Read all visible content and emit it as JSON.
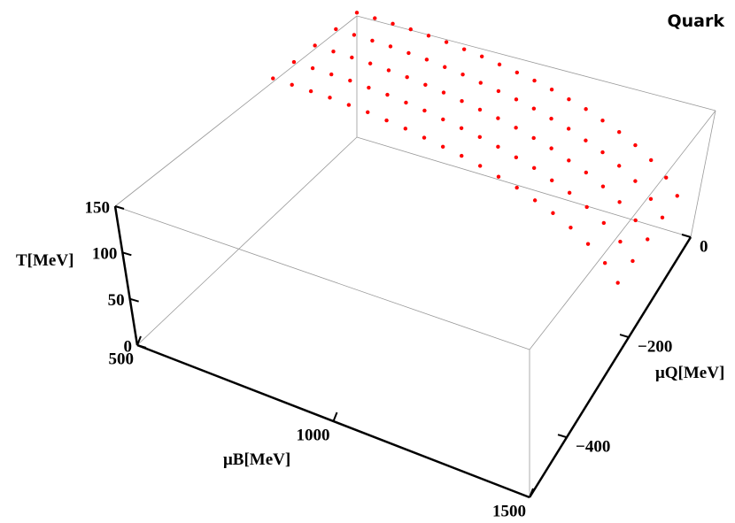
{
  "chart_data": {
    "type": "scatter3d",
    "title": "Quark",
    "xlabel": "μB[MeV]",
    "ylabel": "μQ[MeV]",
    "zlabel": "T[MeV]",
    "xlim": [
      500,
      1500
    ],
    "ylim": [
      -520,
      0
    ],
    "zlim": [
      0,
      150
    ],
    "xticks": [
      500,
      1000,
      1500
    ],
    "yticks": [
      0,
      {
        "value": -200,
        "label": "−200"
      },
      {
        "value": -400,
        "label": "−400"
      }
    ],
    "zticks": [
      0,
      50,
      100,
      150
    ],
    "color": "#ff0000",
    "x": [
      500,
      500,
      500,
      500,
      500,
      550,
      550,
      550,
      550,
      550,
      600,
      600,
      600,
      600,
      600,
      650,
      650,
      650,
      650,
      650,
      700,
      700,
      700,
      700,
      700,
      750,
      750,
      750,
      750,
      750,
      800,
      800,
      800,
      800,
      800,
      850,
      850,
      850,
      850,
      850,
      900,
      900,
      900,
      900,
      900,
      950,
      950,
      950,
      950,
      950,
      1000,
      1000,
      1000,
      1000,
      1000,
      1050,
      1050,
      1050,
      1050,
      1050,
      1100,
      1100,
      1100,
      1100,
      1100,
      1150,
      1150,
      1150,
      1150,
      1150,
      1200,
      1200,
      1200,
      1200,
      1200,
      1250,
      1250,
      1250,
      1250,
      1250,
      1300,
      1300,
      1300,
      1300,
      1300,
      1350,
      1350,
      1350,
      1350,
      1350,
      1400,
      1400,
      1400,
      1400,
      1400,
      1440,
      1440,
      1440,
      1440,
      1440
    ],
    "y": [
      0,
      -45,
      -90,
      -135,
      -180,
      0,
      -45,
      -90,
      -135,
      -180,
      0,
      -45,
      -90,
      -135,
      -180,
      0,
      -45,
      -90,
      -135,
      -180,
      0,
      -45,
      -90,
      -135,
      -180,
      0,
      -45,
      -90,
      -135,
      -180,
      0,
      -45,
      -90,
      -135,
      -180,
      0,
      -45,
      -90,
      -135,
      -180,
      0,
      -45,
      -90,
      -135,
      -180,
      0,
      -45,
      -90,
      -135,
      -180,
      0,
      -45,
      -90,
      -135,
      -180,
      0,
      -45,
      -90,
      -135,
      -180,
      0,
      -45,
      -90,
      -135,
      -180,
      0,
      -45,
      -90,
      -135,
      -180,
      0,
      -45,
      -90,
      -135,
      -180,
      0,
      -45,
      -90,
      -135,
      -180,
      0,
      -45,
      -90,
      -135,
      -180,
      0,
      -45,
      -90,
      -135,
      -180,
      0,
      -45,
      -90,
      -135,
      -180,
      0,
      -45,
      -90,
      -135,
      -180
    ],
    "z": [
      154,
      154,
      154,
      154,
      154,
      153,
      153,
      153,
      153,
      153,
      152,
      152,
      152,
      152,
      152,
      151,
      151,
      151,
      151,
      151,
      149,
      149,
      149,
      149,
      149,
      147,
      147,
      147,
      147,
      147,
      144,
      144,
      144,
      144,
      144,
      141,
      141,
      141,
      141,
      141,
      137,
      137,
      137,
      137,
      137,
      133,
      133,
      133,
      133,
      133,
      129,
      129,
      129,
      129,
      129,
      124,
      124,
      124,
      124,
      124,
      118,
      118,
      118,
      118,
      118,
      112,
      112,
      112,
      112,
      112,
      104,
      104,
      104,
      104,
      104,
      96,
      96,
      96,
      96,
      96,
      86,
      86,
      86,
      86,
      86,
      74,
      74,
      74,
      74,
      74,
      59,
      59,
      59,
      59,
      59,
      42,
      42,
      42,
      42,
      42
    ]
  }
}
